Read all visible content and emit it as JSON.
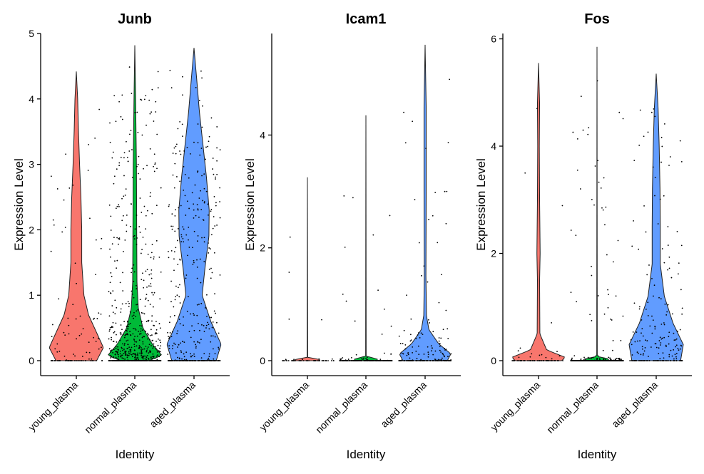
{
  "chart_data": [
    {
      "type": "violin",
      "title": "Junb",
      "xlabel": "Identity",
      "ylabel": "Expression Level",
      "categories": [
        "young_plasma",
        "normal_plasma",
        "aged_plasma"
      ],
      "colors": [
        "#F8766D",
        "#00BA38",
        "#619CFF"
      ],
      "ylim": [
        0,
        5
      ],
      "yticks": [
        "0",
        "1",
        "2",
        "3",
        "4",
        "5"
      ],
      "series": [
        {
          "max": 4.42,
          "density": [
            [
              0,
              0.75
            ],
            [
              0.2,
              1.0
            ],
            [
              0.4,
              0.78
            ],
            [
              0.7,
              0.45
            ],
            [
              1.0,
              0.28
            ],
            [
              1.5,
              0.2
            ],
            [
              2.0,
              0.2
            ],
            [
              2.5,
              0.17
            ],
            [
              3.0,
              0.12
            ],
            [
              3.5,
              0.08
            ],
            [
              4.0,
              0.05
            ],
            [
              4.42,
              0
            ]
          ]
        },
        {
          "max": 4.82,
          "density": [
            [
              0,
              0.52
            ],
            [
              0.08,
              1.0
            ],
            [
              0.25,
              0.65
            ],
            [
              0.5,
              0.3
            ],
            [
              0.8,
              0.13
            ],
            [
              1.2,
              0.08
            ],
            [
              2.0,
              0.07
            ],
            [
              3.0,
              0.06
            ],
            [
              4.0,
              0.03
            ],
            [
              4.82,
              0
            ]
          ]
        },
        {
          "max": 4.78,
          "density": [
            [
              0,
              0.82
            ],
            [
              0.25,
              1.0
            ],
            [
              0.6,
              0.62
            ],
            [
              1.0,
              0.3
            ],
            [
              1.4,
              0.4
            ],
            [
              1.9,
              0.55
            ],
            [
              2.3,
              0.56
            ],
            [
              2.8,
              0.46
            ],
            [
              3.3,
              0.33
            ],
            [
              3.8,
              0.2
            ],
            [
              4.3,
              0.1
            ],
            [
              4.78,
              0
            ]
          ]
        }
      ]
    },
    {
      "type": "violin",
      "title": "Icam1",
      "xlabel": "Identity",
      "ylabel": "Expression Level",
      "categories": [
        "young_plasma",
        "normal_plasma",
        "aged_plasma"
      ],
      "colors": [
        "#F8766D",
        "#00BA38",
        "#619CFF"
      ],
      "ylim": [
        0,
        5.8
      ],
      "yticks": [
        "0",
        "2",
        "4"
      ],
      "series": [
        {
          "max": 3.25,
          "density": [
            [
              0,
              0.45
            ],
            [
              0.02,
              0.45
            ],
            [
              0.06,
              0.01
            ],
            [
              3.25,
              0
            ]
          ]
        },
        {
          "max": 4.35,
          "density": [
            [
              0,
              0.42
            ],
            [
              0.03,
              0.42
            ],
            [
              0.08,
              0.01
            ],
            [
              4.35,
              0
            ]
          ]
        },
        {
          "max": 5.6,
          "density": [
            [
              0,
              0.82
            ],
            [
              0.12,
              0.95
            ],
            [
              0.3,
              0.5
            ],
            [
              0.55,
              0.14
            ],
            [
              0.8,
              0.05
            ],
            [
              1.5,
              0.03
            ],
            [
              3.0,
              0.04
            ],
            [
              4.5,
              0.04
            ],
            [
              5.6,
              0
            ]
          ]
        }
      ]
    },
    {
      "type": "violin",
      "title": "Fos",
      "xlabel": "Identity",
      "ylabel": "Expression Level",
      "categories": [
        "young_plasma",
        "normal_plasma",
        "aged_plasma"
      ],
      "colors": [
        "#F8766D",
        "#00BA38",
        "#619CFF"
      ],
      "ylim": [
        0,
        6.1
      ],
      "yticks": [
        "0",
        "2",
        "4",
        "6"
      ],
      "series": [
        {
          "max": 5.55,
          "density": [
            [
              0,
              0.85
            ],
            [
              0.06,
              1.0
            ],
            [
              0.2,
              0.3
            ],
            [
              0.5,
              0.05
            ],
            [
              1.5,
              0.04
            ],
            [
              2.0,
              0.06
            ],
            [
              3.0,
              0.04
            ],
            [
              4.0,
              0.03
            ],
            [
              4.8,
              0.04
            ],
            [
              5.55,
              0
            ]
          ]
        },
        {
          "max": 5.85,
          "density": [
            [
              0,
              0.45
            ],
            [
              0.03,
              0.45
            ],
            [
              0.08,
              0.01
            ],
            [
              5.85,
              0
            ]
          ]
        },
        {
          "max": 5.35,
          "density": [
            [
              0,
              0.9
            ],
            [
              0.3,
              1.0
            ],
            [
              0.7,
              0.62
            ],
            [
              1.2,
              0.3
            ],
            [
              1.8,
              0.15
            ],
            [
              2.5,
              0.15
            ],
            [
              3.2,
              0.14
            ],
            [
              4.0,
              0.11
            ],
            [
              4.7,
              0.07
            ],
            [
              5.35,
              0
            ]
          ]
        }
      ]
    }
  ]
}
